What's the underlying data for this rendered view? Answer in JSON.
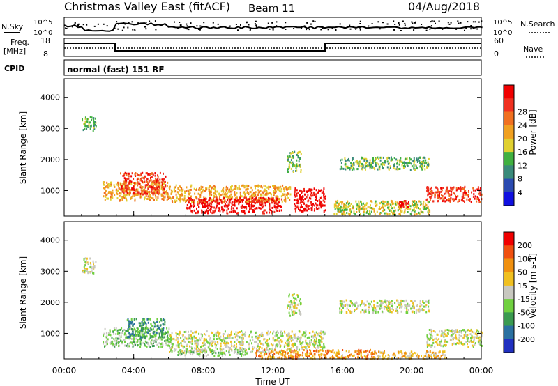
{
  "header": {
    "station": "Christmas Valley East (fitACF)",
    "beam": "Beam 11",
    "date": "04/Aug/2018"
  },
  "top_panel": {
    "left_label": "N.Sky",
    "right_label": "N.Search",
    "left_ticks": [
      "10^5",
      "10^0"
    ],
    "right_ticks": [
      "10^5",
      "10^0"
    ],
    "freq_label": "Freq.",
    "freq_unit": "[MHz]",
    "freq_ticks": [
      "18",
      "8"
    ],
    "nave_label": "Nave",
    "nave_ticks": [
      "60",
      "0"
    ],
    "cpid_label": "CPID",
    "cpid_value": "normal (fast) 151 RF"
  },
  "chart_data": [
    {
      "type": "heatmap",
      "title": "",
      "xlabel": "",
      "ylabel": "Slant Range [km]",
      "xlim": [
        0,
        24
      ],
      "ylim": [
        180,
        4600
      ],
      "yticks": [
        1000,
        2000,
        3000,
        4000
      ],
      "colorbar_label": "Power [dB]",
      "colorbar_ticks": [
        "4",
        "8",
        "12",
        "16",
        "20",
        "24",
        "28"
      ],
      "colorbar_colors": [
        "#1010e0",
        "#2a4ab0",
        "#3a8a7a",
        "#40b040",
        "#e0d030",
        "#f0a020",
        "#f07020",
        "#f03020",
        "#f00000"
      ],
      "regions": [
        {
          "t0": 1.0,
          "t1": 1.8,
          "r0": 2950,
          "r1": 3450,
          "level": 3
        },
        {
          "t0": 2.2,
          "t1": 6.0,
          "r0": 700,
          "r1": 1300,
          "level": 5
        },
        {
          "t0": 3.2,
          "t1": 5.8,
          "r0": 900,
          "r1": 1600,
          "level": 7
        },
        {
          "t0": 6.0,
          "t1": 13.0,
          "r0": 650,
          "r1": 1200,
          "level": 5
        },
        {
          "t0": 7.0,
          "t1": 12.5,
          "r0": 300,
          "r1": 800,
          "level": 8
        },
        {
          "t0": 13.2,
          "t1": 15.0,
          "r0": 350,
          "r1": 1100,
          "level": 8
        },
        {
          "t0": 12.8,
          "t1": 13.6,
          "r0": 1600,
          "r1": 2300,
          "level": 3
        },
        {
          "t0": 15.5,
          "t1": 21.0,
          "r0": 250,
          "r1": 700,
          "level": 4
        },
        {
          "t0": 15.8,
          "t1": 21.0,
          "r0": 1700,
          "r1": 2100,
          "level": 3
        },
        {
          "t0": 20.8,
          "t1": 24.0,
          "r0": 650,
          "r1": 1150,
          "level": 7
        },
        {
          "t0": 19.2,
          "t1": 19.8,
          "r0": 500,
          "r1": 700,
          "level": 8
        }
      ]
    },
    {
      "type": "heatmap",
      "title": "",
      "xlabel": "Time UT",
      "ylabel": "Slant Range [km]",
      "xlim": [
        0,
        24
      ],
      "ylim": [
        180,
        4600
      ],
      "xticks": [
        "00:00",
        "04:00",
        "08:00",
        "12:00",
        "16:00",
        "20:00",
        "00:00"
      ],
      "yticks": [
        1000,
        2000,
        3000,
        4000
      ],
      "colorbar_label": "Velocity [m s-1]",
      "colorbar_ticks": [
        "200",
        "100",
        "50",
        "15",
        "-15",
        "-50",
        "-100",
        "-200"
      ],
      "colorbar_colors": [
        "#2030c0",
        "#2a70a0",
        "#3a9a50",
        "#70d040",
        "#c8c8c0",
        "#f0c020",
        "#f09010",
        "#f05010",
        "#f00000"
      ],
      "regions": [
        {
          "t0": 1.0,
          "t1": 1.8,
          "r0": 2950,
          "r1": 3450,
          "level": 4
        },
        {
          "t0": 2.2,
          "t1": 6.0,
          "r0": 600,
          "r1": 1200,
          "level": 3
        },
        {
          "t0": 3.6,
          "t1": 5.8,
          "r0": 900,
          "r1": 1500,
          "level": 2
        },
        {
          "t0": 6.0,
          "t1": 13.0,
          "r0": 400,
          "r1": 1100,
          "level": 4
        },
        {
          "t0": 6.5,
          "t1": 10.5,
          "r0": 300,
          "r1": 500,
          "level": 3
        },
        {
          "t0": 11.0,
          "t1": 18.0,
          "r0": 200,
          "r1": 500,
          "level": 6
        },
        {
          "t0": 12.8,
          "t1": 15.0,
          "r0": 500,
          "r1": 1100,
          "level": 4
        },
        {
          "t0": 12.8,
          "t1": 13.6,
          "r0": 1600,
          "r1": 2300,
          "level": 4
        },
        {
          "t0": 15.8,
          "t1": 21.0,
          "r0": 1700,
          "r1": 2100,
          "level": 4
        },
        {
          "t0": 18.0,
          "t1": 22.0,
          "r0": 200,
          "r1": 450,
          "level": 5
        },
        {
          "t0": 20.8,
          "t1": 24.0,
          "r0": 600,
          "r1": 1150,
          "level": 4
        }
      ]
    }
  ]
}
